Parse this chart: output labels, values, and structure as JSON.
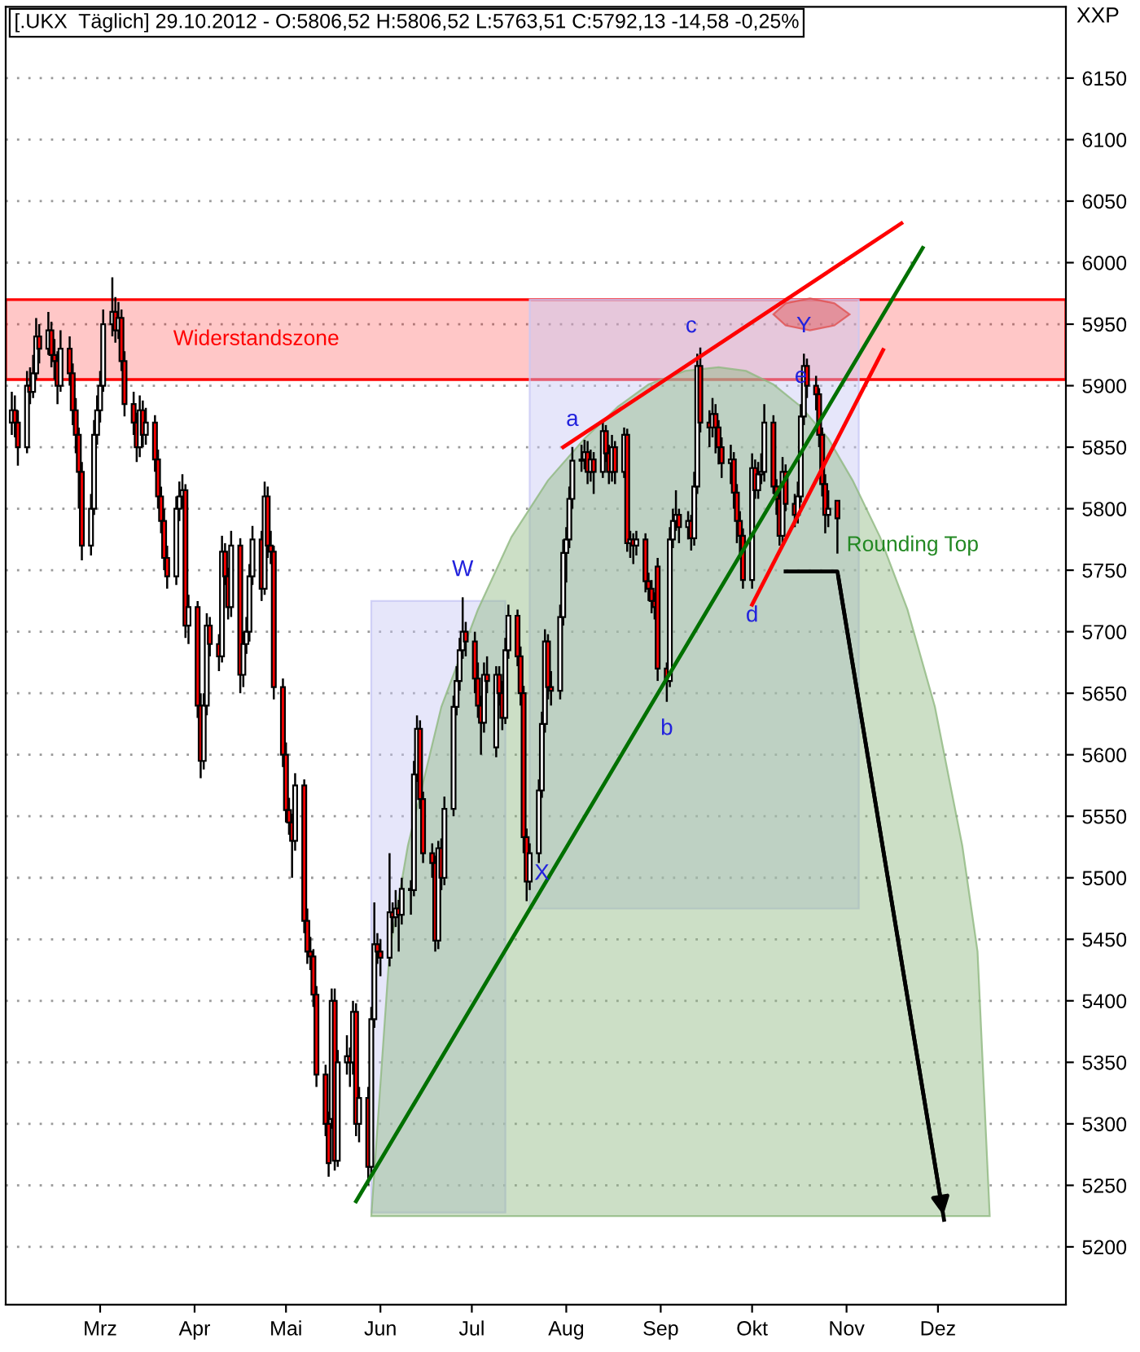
{
  "chart_data": {
    "type": "candlestick",
    "title": "[.UKX  Täglich] 29.10.2012 - O:5806,52 H:5806,52 L:5763,51 C:5792,13 -14,58 -0,25%",
    "ylabel": "XXP",
    "x": [
      "2012-02-01",
      "2012-02-02",
      "2012-02-03",
      "2012-02-06",
      "2012-02-07",
      "2012-02-08",
      "2012-02-09",
      "2012-02-10",
      "2012-02-13",
      "2012-02-14",
      "2012-02-15",
      "2012-02-16",
      "2012-02-17",
      "2012-02-20",
      "2012-02-21",
      "2012-02-22",
      "2012-02-23",
      "2012-02-24",
      "2012-02-27",
      "2012-02-28",
      "2012-02-29",
      "2012-03-01",
      "2012-03-02",
      "2012-03-05",
      "2012-03-06",
      "2012-03-07",
      "2012-03-08",
      "2012-03-09",
      "2012-03-12",
      "2012-03-13",
      "2012-03-14",
      "2012-03-15",
      "2012-03-16",
      "2012-03-19",
      "2012-03-20",
      "2012-03-21",
      "2012-03-22",
      "2012-03-23",
      "2012-03-26",
      "2012-03-27",
      "2012-03-28",
      "2012-03-29",
      "2012-03-30",
      "2012-04-02",
      "2012-04-03",
      "2012-04-04",
      "2012-04-05",
      "2012-04-06",
      "2012-04-09",
      "2012-04-10",
      "2012-04-11",
      "2012-04-12",
      "2012-04-13",
      "2012-04-16",
      "2012-04-17",
      "2012-04-18",
      "2012-04-19",
      "2012-04-20",
      "2012-04-23",
      "2012-04-24",
      "2012-04-25",
      "2012-04-26",
      "2012-04-27",
      "2012-04-30",
      "2012-05-01",
      "2012-05-02",
      "2012-05-03",
      "2012-05-04",
      "2012-05-07",
      "2012-05-08",
      "2012-05-09",
      "2012-05-10",
      "2012-05-11",
      "2012-05-14",
      "2012-05-15",
      "2012-05-16",
      "2012-05-17",
      "2012-05-18",
      "2012-05-21",
      "2012-05-22",
      "2012-05-23",
      "2012-05-24",
      "2012-05-25",
      "2012-05-28",
      "2012-05-29",
      "2012-05-30",
      "2012-05-31",
      "2012-06-01",
      "2012-06-04",
      "2012-06-05",
      "2012-06-06",
      "2012-06-07",
      "2012-06-08",
      "2012-06-11",
      "2012-06-12",
      "2012-06-13",
      "2012-06-14",
      "2012-06-15",
      "2012-06-18",
      "2012-06-19",
      "2012-06-20",
      "2012-06-21",
      "2012-06-22",
      "2012-06-25",
      "2012-06-26",
      "2012-06-27",
      "2012-06-28",
      "2012-06-29",
      "2012-07-02",
      "2012-07-03",
      "2012-07-04",
      "2012-07-05",
      "2012-07-06",
      "2012-07-09",
      "2012-07-10",
      "2012-07-11",
      "2012-07-12",
      "2012-07-13",
      "2012-07-16",
      "2012-07-17",
      "2012-07-18",
      "2012-07-19",
      "2012-07-20",
      "2012-07-23",
      "2012-07-24",
      "2012-07-25",
      "2012-07-26",
      "2012-07-27",
      "2012-07-30",
      "2012-07-31",
      "2012-08-01",
      "2012-08-02",
      "2012-08-03",
      "2012-08-06",
      "2012-08-07",
      "2012-08-08",
      "2012-08-09",
      "2012-08-10",
      "2012-08-13",
      "2012-08-14",
      "2012-08-15",
      "2012-08-16",
      "2012-08-17",
      "2012-08-20",
      "2012-08-21",
      "2012-08-22",
      "2012-08-23",
      "2012-08-24",
      "2012-08-27",
      "2012-08-28",
      "2012-08-29",
      "2012-08-30",
      "2012-08-31",
      "2012-09-03",
      "2012-09-04",
      "2012-09-05",
      "2012-09-06",
      "2012-09-07",
      "2012-09-10",
      "2012-09-11",
      "2012-09-12",
      "2012-09-13",
      "2012-09-14",
      "2012-09-17",
      "2012-09-18",
      "2012-09-19",
      "2012-09-20",
      "2012-09-21",
      "2012-09-24",
      "2012-09-25",
      "2012-09-26",
      "2012-09-27",
      "2012-09-28",
      "2012-10-01",
      "2012-10-02",
      "2012-10-03",
      "2012-10-04",
      "2012-10-05",
      "2012-10-08",
      "2012-10-09",
      "2012-10-10",
      "2012-10-11",
      "2012-10-12",
      "2012-10-15",
      "2012-10-16",
      "2012-10-17",
      "2012-10-18",
      "2012-10-19",
      "2012-10-22",
      "2012-10-23",
      "2012-10-24",
      "2012-10-25",
      "2012-10-26",
      "2012-10-29"
    ],
    "ohlc": [
      [
        5870,
        5895,
        5860,
        5880
      ],
      [
        5880,
        5892,
        5858,
        5870
      ],
      [
        5870,
        5880,
        5835,
        5850
      ],
      [
        5850,
        5912,
        5845,
        5900
      ],
      [
        5900,
        5915,
        5885,
        5895
      ],
      [
        5895,
        5925,
        5890,
        5910
      ],
      [
        5910,
        5955,
        5905,
        5940
      ],
      [
        5940,
        5950,
        5918,
        5930
      ],
      [
        5930,
        5960,
        5925,
        5945
      ],
      [
        5945,
        5952,
        5915,
        5925
      ],
      [
        5925,
        5938,
        5905,
        5920
      ],
      [
        5920,
        5928,
        5885,
        5900
      ],
      [
        5900,
        5945,
        5895,
        5930
      ],
      [
        5930,
        5940,
        5900,
        5910
      ],
      [
        5910,
        5918,
        5868,
        5880
      ],
      [
        5880,
        5890,
        5845,
        5860
      ],
      [
        5860,
        5866,
        5800,
        5830
      ],
      [
        5830,
        5838,
        5758,
        5770
      ],
      [
        5770,
        5812,
        5762,
        5800
      ],
      [
        5800,
        5872,
        5795,
        5860
      ],
      [
        5860,
        5892,
        5852,
        5880
      ],
      [
        5880,
        5912,
        5870,
        5900
      ],
      [
        5900,
        5962,
        5895,
        5950
      ],
      [
        5950,
        5988,
        5940,
        5960
      ],
      [
        5960,
        5972,
        5935,
        5945
      ],
      [
        5945,
        5968,
        5938,
        5955
      ],
      [
        5955,
        5962,
        5912,
        5920
      ],
      [
        5920,
        5928,
        5875,
        5885
      ],
      [
        5885,
        5895,
        5860,
        5870
      ],
      [
        5870,
        5878,
        5838,
        5850
      ],
      [
        5850,
        5892,
        5842,
        5880
      ],
      [
        5880,
        5888,
        5850,
        5860
      ],
      [
        5860,
        5882,
        5852,
        5870
      ],
      [
        5870,
        5876,
        5830,
        5840
      ],
      [
        5840,
        5848,
        5800,
        5810
      ],
      [
        5810,
        5818,
        5780,
        5790
      ],
      [
        5790,
        5800,
        5750,
        5760
      ],
      [
        5760,
        5770,
        5735,
        5745
      ],
      [
        5745,
        5810,
        5738,
        5800
      ],
      [
        5800,
        5822,
        5790,
        5810
      ],
      [
        5810,
        5828,
        5800,
        5815
      ],
      [
        5815,
        5820,
        5695,
        5705
      ],
      [
        5705,
        5730,
        5690,
        5720
      ],
      [
        5720,
        5725,
        5630,
        5640
      ],
      [
        5640,
        5650,
        5581,
        5595
      ],
      [
        5595,
        5650,
        5588,
        5640
      ],
      [
        5640,
        5715,
        5632,
        5705
      ],
      [
        5705,
        5712,
        5680,
        5690
      ],
      [
        5690,
        5698,
        5668,
        5680
      ],
      [
        5680,
        5778,
        5675,
        5765
      ],
      [
        5765,
        5772,
        5738,
        5745
      ],
      [
        5745,
        5752,
        5710,
        5720
      ],
      [
        5720,
        5782,
        5712,
        5770
      ],
      [
        5770,
        5776,
        5650,
        5665
      ],
      [
        5665,
        5700,
        5655,
        5690
      ],
      [
        5690,
        5712,
        5682,
        5700
      ],
      [
        5700,
        5755,
        5692,
        5745
      ],
      [
        5745,
        5786,
        5738,
        5775
      ],
      [
        5775,
        5782,
        5725,
        5735
      ],
      [
        5735,
        5822,
        5730,
        5810
      ],
      [
        5810,
        5818,
        5760,
        5770
      ],
      [
        5770,
        5782,
        5755,
        5765
      ],
      [
        5765,
        5770,
        5645,
        5655
      ],
      [
        5655,
        5662,
        5590,
        5600
      ],
      [
        5600,
        5610,
        5545,
        5555
      ],
      [
        5555,
        5565,
        5535,
        5545
      ],
      [
        5545,
        5552,
        5500,
        5530
      ],
      [
        5530,
        5585,
        5522,
        5575
      ],
      [
        5575,
        5580,
        5455,
        5465
      ],
      [
        5465,
        5475,
        5430,
        5440
      ],
      [
        5440,
        5452,
        5425,
        5436
      ],
      [
        5436,
        5442,
        5395,
        5405
      ],
      [
        5405,
        5412,
        5330,
        5340
      ],
      [
        5340,
        5348,
        5290,
        5300
      ],
      [
        5300,
        5310,
        5257,
        5268
      ],
      [
        5304,
        5410,
        5296,
        5400
      ],
      [
        5400,
        5410,
        5262,
        5270
      ],
      [
        5270,
        5360,
        5265,
        5350
      ],
      [
        5350,
        5372,
        5340,
        5355
      ],
      [
        5355,
        5362,
        5330,
        5350
      ],
      [
        5350,
        5400,
        5340,
        5391
      ],
      [
        5391,
        5398,
        5290,
        5300
      ],
      [
        5300,
        5330,
        5285,
        5321
      ],
      [
        5321,
        5330,
        5250,
        5265
      ],
      [
        5265,
        5395,
        5258,
        5385
      ],
      [
        5385,
        5480,
        5378,
        5446
      ],
      [
        5446,
        5455,
        5430,
        5440
      ],
      [
        5440,
        5450,
        5420,
        5435
      ],
      [
        5435,
        5520,
        5428,
        5472
      ],
      [
        5472,
        5480,
        5455,
        5468
      ],
      [
        5468,
        5490,
        5460,
        5475
      ],
      [
        5475,
        5482,
        5440,
        5470
      ],
      [
        5470,
        5500,
        5462,
        5491
      ],
      [
        5491,
        5498,
        5470,
        5490
      ],
      [
        5490,
        5595,
        5485,
        5584
      ],
      [
        5584,
        5632,
        5578,
        5621
      ],
      [
        5621,
        5628,
        5556,
        5564
      ],
      [
        5564,
        5570,
        5512,
        5520
      ],
      [
        5520,
        5528,
        5500,
        5512
      ],
      [
        5512,
        5518,
        5440,
        5449
      ],
      [
        5449,
        5530,
        5442,
        5524
      ],
      [
        5524,
        5532,
        5490,
        5500
      ],
      [
        5500,
        5566,
        5494,
        5556
      ],
      [
        5556,
        5648,
        5550,
        5639
      ],
      [
        5639,
        5672,
        5632,
        5660
      ],
      [
        5660,
        5695,
        5652,
        5685
      ],
      [
        5685,
        5728,
        5678,
        5700
      ],
      [
        5700,
        5708,
        5680,
        5692
      ],
      [
        5692,
        5700,
        5650,
        5662
      ],
      [
        5662,
        5675,
        5630,
        5640
      ],
      [
        5640,
        5648,
        5600,
        5626
      ],
      [
        5626,
        5675,
        5618,
        5665
      ],
      [
        5665,
        5680,
        5650,
        5660
      ],
      [
        5606,
        5672,
        5598,
        5665
      ],
      [
        5665,
        5672,
        5640,
        5650
      ],
      [
        5650,
        5660,
        5620,
        5630
      ],
      [
        5630,
        5695,
        5625,
        5685
      ],
      [
        5685,
        5722,
        5678,
        5713
      ],
      [
        5713,
        5718,
        5672,
        5680
      ],
      [
        5680,
        5688,
        5640,
        5650
      ],
      [
        5650,
        5656,
        5520,
        5533
      ],
      [
        5533,
        5540,
        5481,
        5497
      ],
      [
        5497,
        5528,
        5490,
        5520
      ],
      [
        5520,
        5580,
        5512,
        5571
      ],
      [
        5571,
        5635,
        5565,
        5625
      ],
      [
        5625,
        5702,
        5618,
        5692
      ],
      [
        5692,
        5698,
        5645,
        5655
      ],
      [
        5655,
        5668,
        5640,
        5652
      ],
      [
        5652,
        5722,
        5645,
        5712
      ],
      [
        5712,
        5775,
        5705,
        5764
      ],
      [
        5764,
        5785,
        5740,
        5775
      ],
      [
        5775,
        5818,
        5768,
        5808
      ],
      [
        5808,
        5850,
        5800,
        5839
      ],
      [
        5839,
        5852,
        5830,
        5840
      ],
      [
        5840,
        5856,
        5832,
        5846
      ],
      [
        5846,
        5855,
        5820,
        5830
      ],
      [
        5830,
        5848,
        5822,
        5840
      ],
      [
        5840,
        5846,
        5812,
        5830
      ],
      [
        5830,
        5872,
        5825,
        5863
      ],
      [
        5863,
        5868,
        5838,
        5845
      ],
      [
        5845,
        5852,
        5820,
        5830
      ],
      [
        5830,
        5860,
        5822,
        5850
      ],
      [
        5850,
        5855,
        5820,
        5830
      ],
      [
        5830,
        5866,
        5825,
        5860
      ],
      [
        5860,
        5865,
        5765,
        5772
      ],
      [
        5772,
        5782,
        5760,
        5775
      ],
      [
        5775,
        5780,
        5755,
        5770
      ],
      [
        5770,
        5782,
        5762,
        5775
      ],
      [
        5775,
        5780,
        5732,
        5741
      ],
      [
        5741,
        5748,
        5725,
        5735
      ],
      [
        5735,
        5742,
        5715,
        5725
      ],
      [
        5725,
        5732,
        5710,
        5720
      ],
      [
        5753,
        5760,
        5660,
        5670
      ],
      [
        5670,
        5675,
        5643,
        5660
      ],
      [
        5660,
        5785,
        5655,
        5775
      ],
      [
        5775,
        5800,
        5768,
        5790
      ],
      [
        5790,
        5815,
        5782,
        5795
      ],
      [
        5795,
        5800,
        5772,
        5785
      ],
      [
        5785,
        5798,
        5775,
        5790
      ],
      [
        5790,
        5795,
        5766,
        5776
      ],
      [
        5776,
        5830,
        5770,
        5818
      ],
      [
        5818,
        5926,
        5812,
        5916
      ],
      [
        5916,
        5931,
        5862,
        5870
      ],
      [
        5870,
        5880,
        5850,
        5866
      ],
      [
        5866,
        5890,
        5858,
        5877
      ],
      [
        5877,
        5885,
        5845,
        5866
      ],
      [
        5866,
        5872,
        5836,
        5850
      ],
      [
        5850,
        5858,
        5825,
        5837
      ],
      [
        5837,
        5852,
        5820,
        5840
      ],
      [
        5840,
        5846,
        5800,
        5813
      ],
      [
        5813,
        5820,
        5772,
        5790
      ],
      [
        5790,
        5798,
        5760,
        5778
      ],
      [
        5778,
        5784,
        5735,
        5742
      ],
      [
        5742,
        5845,
        5735,
        5833
      ],
      [
        5833,
        5840,
        5808,
        5815
      ],
      [
        5815,
        5838,
        5808,
        5828
      ],
      [
        5828,
        5845,
        5820,
        5830
      ],
      [
        5830,
        5885,
        5822,
        5870
      ],
      [
        5870,
        5876,
        5812,
        5818
      ],
      [
        5818,
        5824,
        5795,
        5808
      ],
      [
        5808,
        5815,
        5770,
        5778
      ],
      [
        5778,
        5842,
        5772,
        5830
      ],
      [
        5830,
        5836,
        5798,
        5804
      ],
      [
        5804,
        5812,
        5785,
        5795
      ],
      [
        5795,
        5822,
        5788,
        5810
      ],
      [
        5810,
        5885,
        5805,
        5875
      ],
      [
        5875,
        5926,
        5868,
        5916
      ],
      [
        5916,
        5922,
        5890,
        5900
      ],
      [
        5900,
        5908,
        5880,
        5893
      ],
      [
        5893,
        5898,
        5850,
        5860
      ],
      [
        5860,
        5866,
        5810,
        5820
      ],
      [
        5820,
        5828,
        5780,
        5795
      ],
      [
        5795,
        5815,
        5785,
        5800
      ],
      [
        5806.52,
        5806.52,
        5763.51,
        5792.13
      ]
    ],
    "series": [
      {
        "type": "area",
        "color": "#c8c8f5",
        "x": [
          "2012-05-29",
          "2012-05-29",
          "2012-07-12",
          "2012-07-12"
        ],
        "values": [
          5228,
          5725,
          5725,
          5228
        ]
      },
      {
        "type": "area",
        "color": "#c8c8f5",
        "x": [
          "2012-07-20",
          "2012-07-20",
          "2012-11-05",
          "2012-11-05"
        ],
        "values": [
          5475,
          5970,
          5970,
          5475
        ]
      },
      {
        "type": "area",
        "name": "Rounding Top",
        "color": "#8fb880",
        "x": [
          "2012-05-29",
          "2012-06-04",
          "2012-06-10",
          "2012-06-21",
          "2012-07-03",
          "2012-07-14",
          "2012-07-26",
          "2012-08-07",
          "2012-08-18",
          "2012-08-28",
          "2012-09-09",
          "2012-09-20",
          "2012-09-29",
          "2012-10-08",
          "2012-10-17",
          "2012-10-26",
          "2012-11-03",
          "2012-11-12",
          "2012-11-21",
          "2012-11-30",
          "2012-12-09",
          "2012-12-14",
          "2012-12-18"
        ],
        "values": [
          5225,
          5440,
          5526,
          5639,
          5718,
          5777,
          5823,
          5857,
          5883,
          5901,
          5912,
          5915,
          5912,
          5901,
          5883,
          5857,
          5823,
          5777,
          5718,
          5639,
          5526,
          5440,
          5225
        ]
      },
      {
        "type": "area",
        "color": "#e05050",
        "x": [
          "2012-10-08",
          "2012-10-12",
          "2012-10-20",
          "2012-10-28",
          "2012-11-02",
          "2012-10-28",
          "2012-10-20",
          "2012-10-12"
        ],
        "values": [
          5958,
          5967,
          5971,
          5967,
          5958,
          5949,
          5945,
          5949
        ]
      },
      {
        "type": "line",
        "color": "#007000",
        "x": [
          "2012-05-24",
          "2012-11-26"
        ],
        "values": [
          5237,
          6012
        ]
      },
      {
        "type": "line",
        "color": "#ff0000",
        "x": [
          "2012-10-01",
          "2012-11-13"
        ],
        "values": [
          5722,
          5929
        ]
      },
      {
        "type": "line",
        "color": "#ff0000",
        "x": [
          "2012-07-31",
          "2012-11-19"
        ],
        "values": [
          5850,
          6032
        ]
      },
      {
        "type": "line",
        "color": "#000000",
        "x": [
          "2012-10-12",
          "2012-10-29",
          "2012-12-03"
        ],
        "values": [
          5749,
          5749,
          5222
        ]
      }
    ],
    "bands": [
      {
        "axis": "y",
        "from": 5905,
        "to": 5970,
        "label": "Widerstandszone",
        "color": "#ff0000"
      }
    ],
    "annotations": [
      {
        "text": "a",
        "x": "2012-08-03",
        "y": 5850
      },
      {
        "text": "b",
        "x": "2012-09-03",
        "y": 5643
      },
      {
        "text": "c",
        "x": "2012-09-11",
        "y": 5926
      },
      {
        "text": "d",
        "x": "2012-10-01",
        "y": 5735
      },
      {
        "text": "e",
        "x": "2012-10-17",
        "y": 5885
      },
      {
        "text": "Y",
        "x": "2012-10-18",
        "y": 5926
      },
      {
        "text": "W",
        "x": "2012-06-28",
        "y": 5728
      },
      {
        "text": "X",
        "x": "2012-07-24",
        "y": 5481
      }
    ],
    "xlim": [
      "2012-01-30",
      "2013-01-12"
    ],
    "xticks": [
      {
        "value": "2012-03-01",
        "label": "Mrz"
      },
      {
        "value": "2012-04-01",
        "label": "Apr"
      },
      {
        "value": "2012-05-01",
        "label": "Mai"
      },
      {
        "value": "2012-06-01",
        "label": "Jun"
      },
      {
        "value": "2012-07-01",
        "label": "Jul"
      },
      {
        "value": "2012-08-01",
        "label": "Aug"
      },
      {
        "value": "2012-09-01",
        "label": "Sep"
      },
      {
        "value": "2012-10-01",
        "label": "Okt"
      },
      {
        "value": "2012-11-01",
        "label": "Nov"
      },
      {
        "value": "2012-12-01",
        "label": "Dez"
      }
    ],
    "ylim": [
      5153,
      6208
    ],
    "yticks": [
      5200,
      5250,
      5300,
      5350,
      5400,
      5450,
      5500,
      5550,
      5600,
      5650,
      5700,
      5750,
      5800,
      5850,
      5900,
      5950,
      6000,
      6050,
      6100,
      6150
    ],
    "grid": "y"
  }
}
